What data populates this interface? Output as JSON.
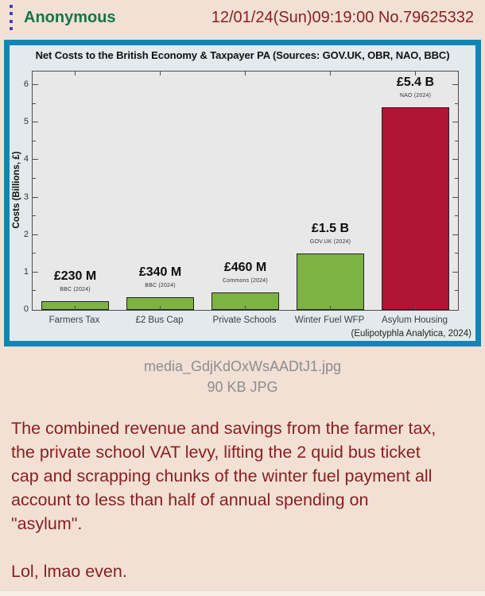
{
  "post": {
    "author": "Anonymous",
    "timestamp": "12/01/24(Sun)09:19:00",
    "post_number": "No.79625332",
    "file": {
      "name": "media_GdjKdOxWsAADtJ1.jpg",
      "meta": "90 KB JPG"
    },
    "comment_lines": [
      "The combined revenue and savings from the farmer tax,",
      "the private school VAT levy, lifting the 2 quid bus ticket",
      "cap and scrapping chunks of the winter fuel payment all",
      "account to less than half of annual spending on",
      "\"asylum\".",
      "",
      "Lol, lmao even."
    ]
  },
  "chart_data": {
    "type": "bar",
    "title": "Net Costs to the British Economy & Taxpayer PA (Sources: GOV.UK, OBR, NAO, BBC)",
    "ylabel": "Costs (Billions, £)",
    "xlabel": "",
    "categories": [
      "Farmers Tax",
      "£2 Bus Cap",
      "Private Schools",
      "Winter Fuel WFP",
      "Asylum Housing"
    ],
    "values": [
      0.23,
      0.34,
      0.46,
      1.5,
      5.4
    ],
    "value_labels": [
      "£230 M",
      "£340 M",
      "£460 M",
      "£1.5 B",
      "£5.4 B"
    ],
    "source_labels": [
      "BBC (2024)",
      "BBC (2024)",
      "Commons (2024)",
      "GOV.UK (2024)",
      "NAO (2024)"
    ],
    "bar_colors": [
      "#7cb342",
      "#7cb342",
      "#7cb342",
      "#7cb342",
      "#b01535"
    ],
    "ylim": [
      0,
      6.36
    ],
    "yticks": [
      0,
      1,
      2,
      3,
      4,
      5,
      6
    ],
    "minor_tick_step": 0.5,
    "grid": false,
    "legend": null,
    "attribution": "(Eulipotyphla Analytica, 2024)"
  },
  "colors": {
    "page_bg": "#f2e0d5",
    "accent_border": "#1385b5",
    "author_green": "#117743",
    "maroon_text": "#871f1f",
    "file_text_gray": "#8d8d8d",
    "menu_icon_blue": "#3b3bc4",
    "figure_bg": "#e3e9ec",
    "plot_bg": "#e8e8e8",
    "bar_green": "#7cb342",
    "bar_crimson": "#b01535",
    "axis_color": "#4d4d4d"
  }
}
